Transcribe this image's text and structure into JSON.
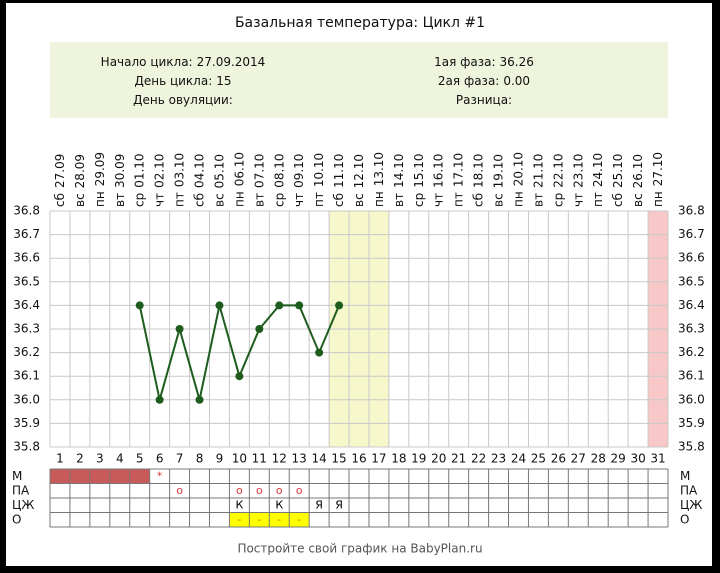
{
  "chart_data": {
    "type": "line",
    "title": "Базальная температура: Цикл #1",
    "info_left": [
      {
        "label": "Начало цикла:",
        "value": "27.09.2014"
      },
      {
        "label": "День цикла:",
        "value": "15"
      },
      {
        "label": "День овуляции:"
      }
    ],
    "info_right": [
      {
        "label": "1ая фаза:",
        "value": "36.26"
      },
      {
        "label": "2ая фаза:",
        "value": "0.00"
      },
      {
        "label": "Разница:"
      }
    ],
    "categories": [
      1,
      2,
      3,
      4,
      5,
      6,
      7,
      8,
      9,
      10,
      11,
      12,
      13,
      14,
      15,
      16,
      17,
      18,
      19,
      20,
      21,
      22,
      23,
      24,
      25,
      26,
      27,
      28,
      29,
      30,
      31
    ],
    "weekdays": [
      "сб",
      "вс",
      "пн",
      "вт",
      "ср",
      "чт",
      "пт",
      "сб",
      "вс",
      "пн",
      "вт",
      "ср",
      "чт",
      "пт",
      "сб",
      "вс",
      "пн",
      "вт",
      "ср",
      "чт",
      "пт",
      "сб",
      "вс",
      "пн",
      "вт",
      "ср",
      "чт",
      "пт",
      "сб",
      "вс",
      "пн"
    ],
    "dates": [
      "27.09",
      "28.09",
      "29.09",
      "30.09",
      "01.10",
      "02.10",
      "03.10",
      "04.10",
      "05.10",
      "06.10",
      "07.10",
      "08.10",
      "09.10",
      "10.10",
      "11.10",
      "12.10",
      "13.10",
      "14.10",
      "15.10",
      "16.10",
      "17.10",
      "18.10",
      "19.10",
      "20.10",
      "21.10",
      "22.10",
      "23.10",
      "24.10",
      "25.10",
      "26.10",
      "27.10"
    ],
    "series": [
      {
        "color": "#1e5c1e",
        "values": [
          null,
          null,
          null,
          null,
          36.4,
          36.0,
          36.3,
          36.0,
          36.4,
          36.1,
          36.3,
          36.4,
          36.4,
          36.2,
          36.4,
          null,
          null,
          null,
          null,
          null,
          null,
          null,
          null,
          null,
          null,
          null,
          null,
          null,
          null,
          null,
          null
        ]
      }
    ],
    "ylim": [
      35.8,
      36.8
    ],
    "yticks": [
      35.8,
      35.9,
      {
        "value": 36.0,
        "label": "36.0"
      },
      36.1,
      36.2,
      36.3,
      36.4,
      36.5,
      36.6,
      36.7,
      36.8
    ],
    "grid": true,
    "shaded_columns": [
      {
        "days": [
          15,
          16,
          17
        ],
        "color": "#f7f7cc"
      },
      {
        "days": [
          31
        ],
        "color": "#f8c8c8"
      }
    ],
    "marker_rows": [
      {
        "label": "М",
        "filled_days": [
          1,
          2,
          3,
          4,
          5
        ],
        "fill": "#c85a5a",
        "text_color": "#d83a3a",
        "entries": [
          {
            "day": 6,
            "text": "*"
          }
        ]
      },
      {
        "label": "ПА",
        "text_color": "#d83a3a",
        "entries": [
          {
            "day": 7,
            "text": "o"
          },
          {
            "day": 10,
            "text": "o"
          },
          {
            "day": 11,
            "text": "o"
          },
          {
            "day": 12,
            "text": "o"
          },
          {
            "day": 13,
            "text": "o"
          }
        ]
      },
      {
        "label": "ЦЖ",
        "text_color": "#000000",
        "entries": [
          {
            "day": 10,
            "text": "К"
          },
          {
            "day": 12,
            "text": "К"
          },
          {
            "day": 14,
            "text": "Я"
          },
          {
            "day": 15,
            "text": "Я"
          }
        ]
      },
      {
        "label": "О",
        "filled_days": [
          10,
          11,
          12,
          13
        ],
        "fill": "#ffff00",
        "text_color": "#a09000",
        "entries": [
          {
            "day": 10,
            "text": "-"
          },
          {
            "day": 11,
            "text": "-"
          },
          {
            "day": 12,
            "text": "-"
          },
          {
            "day": 13,
            "text": "-"
          }
        ]
      }
    ],
    "footer": "Постройте свой график на BabyPlan.ru"
  }
}
